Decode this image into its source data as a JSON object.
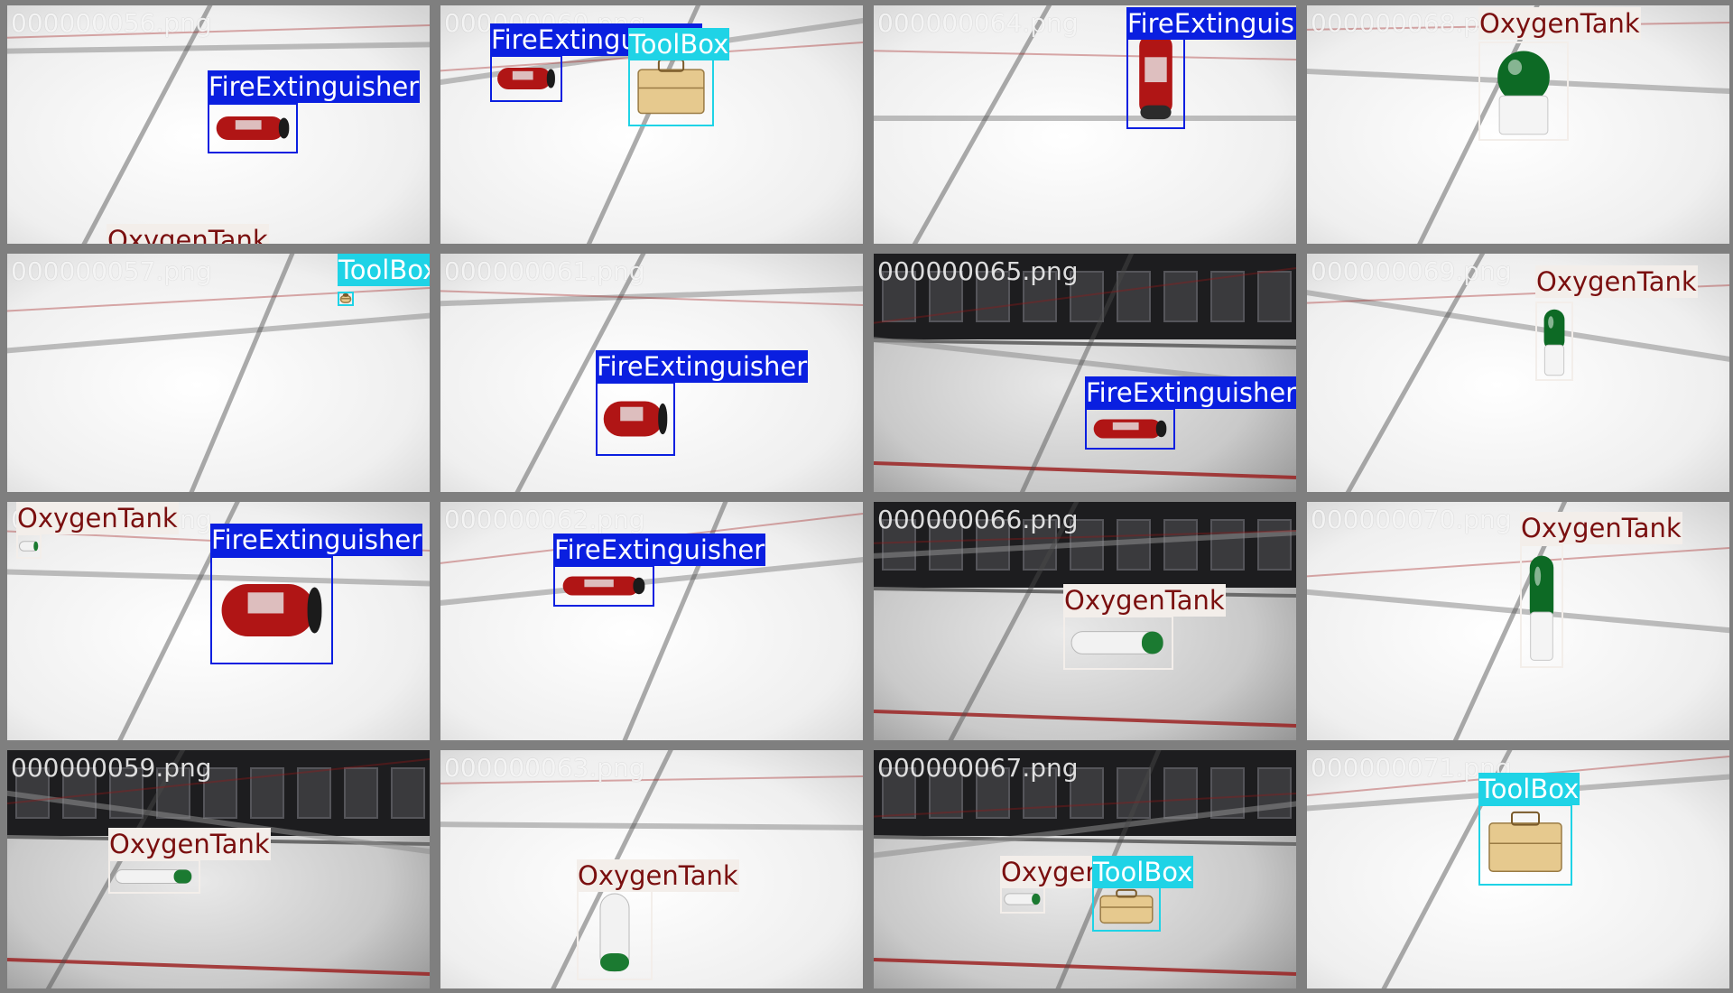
{
  "colors": {
    "FireExtinguisher": "#0a1fe0",
    "ToolBox": "#1fd3e6",
    "OxygenTank": "#f3eeea",
    "label_text_dark": "#7a0f0f",
    "label_text_light": "#ffffff"
  },
  "tiles": [
    {
      "filename": "000000056.png",
      "scene": "bright",
      "detections": [
        {
          "label": "FireExtinguisher",
          "object": "fire-extinguisher-red"
        },
        {
          "label": "OxygenTank",
          "object": "oxygen-tank"
        }
      ]
    },
    {
      "filename": "000000060.png",
      "scene": "bright",
      "detections": [
        {
          "label": "FireExtinguisher",
          "object": "fire-extinguisher-red"
        },
        {
          "label": "ToolBox",
          "object": "toolbox"
        }
      ]
    },
    {
      "filename": "000000064.png",
      "scene": "bright",
      "detections": [
        {
          "label": "FireExtinguisher",
          "object": "fire-extinguisher-red"
        }
      ]
    },
    {
      "filename": "000000068.png",
      "scene": "bright",
      "detections": [
        {
          "label": "OxygenTank",
          "object": "oxygen-tank-green"
        }
      ]
    },
    {
      "filename": "000000057.png",
      "scene": "bright",
      "detections": [
        {
          "label": "ToolBox",
          "object": "toolbox"
        }
      ]
    },
    {
      "filename": "000000061.png",
      "scene": "bright",
      "detections": [
        {
          "label": "FireExtinguisher",
          "object": "fire-extinguisher-red"
        }
      ]
    },
    {
      "filename": "000000065.png",
      "scene": "dark",
      "detections": [
        {
          "label": "FireExtinguisher",
          "object": "fire-extinguisher-red"
        }
      ]
    },
    {
      "filename": "000000069.png",
      "scene": "bright",
      "detections": [
        {
          "label": "OxygenTank",
          "object": "oxygen-tank-green"
        }
      ]
    },
    {
      "filename": "000000058.png",
      "scene": "bright",
      "detections": [
        {
          "label": "OxygenTank",
          "object": "oxygen-tank"
        },
        {
          "label": "FireExtinguisher",
          "object": "fire-extinguisher-red"
        }
      ]
    },
    {
      "filename": "000000062.png",
      "scene": "bright",
      "detections": [
        {
          "label": "FireExtinguisher",
          "object": "fire-extinguisher-red"
        }
      ]
    },
    {
      "filename": "000000066.png",
      "scene": "dark",
      "detections": [
        {
          "label": "OxygenTank",
          "object": "oxygen-tank"
        }
      ]
    },
    {
      "filename": "000000070.png",
      "scene": "bright",
      "detections": [
        {
          "label": "OxygenTank",
          "object": "oxygen-tank-green"
        }
      ]
    },
    {
      "filename": "000000059.png",
      "scene": "dark",
      "detections": [
        {
          "label": "OxygenTank",
          "object": "oxygen-tank"
        }
      ]
    },
    {
      "filename": "000000063.png",
      "scene": "bright",
      "detections": [
        {
          "label": "OxygenTank",
          "object": "oxygen-tank"
        }
      ]
    },
    {
      "filename": "000000067.png",
      "scene": "dark",
      "detections": [
        {
          "label": "OxygenTank",
          "object": "oxygen-tank"
        },
        {
          "label": "ToolBox",
          "object": "toolbox"
        }
      ]
    },
    {
      "filename": "000000071.png",
      "scene": "bright",
      "detections": [
        {
          "label": "ToolBox",
          "object": "toolbox"
        }
      ]
    }
  ]
}
